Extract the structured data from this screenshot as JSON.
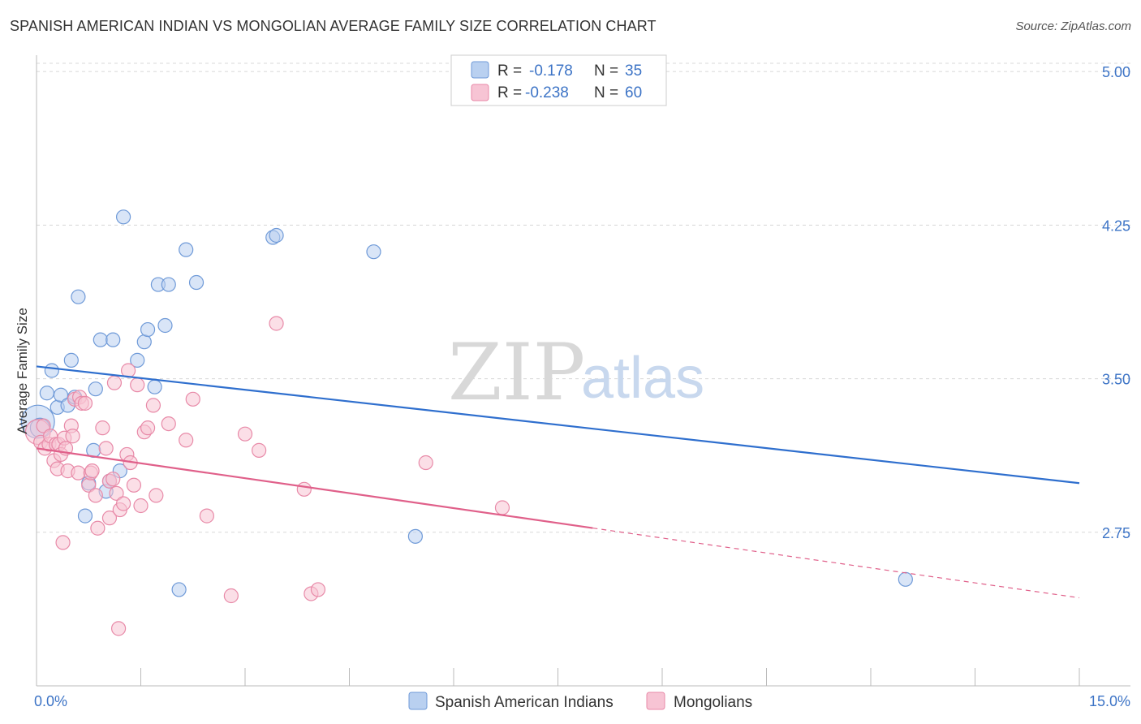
{
  "header": {
    "title": "SPANISH AMERICAN INDIAN VS MONGOLIAN AVERAGE FAMILY SIZE CORRELATION CHART",
    "source": "Source: ZipAtlas.com"
  },
  "watermark": {
    "zip": "ZIP",
    "atlas": "atlas"
  },
  "colors": {
    "blue": "#3d74c6",
    "blue_fill": "#b9d0f0",
    "blue_line": "#2f6fce",
    "pink_fill": "#f7c4d4",
    "pink_stroke": "#e88aa8",
    "pink_line": "#e0608a",
    "grid": "#d8d8d8"
  },
  "legend": {
    "rows": [
      {
        "r_label": "R =",
        "r_value": "-0.178",
        "n_label": "N =",
        "n_value": "35"
      },
      {
        "r_label": "R =",
        "r_value": "-0.238",
        "n_label": "N =",
        "n_value": "60"
      }
    ]
  },
  "chart_data": {
    "type": "scatter",
    "title": "SPANISH AMERICAN INDIAN VS MONGOLIAN AVERAGE FAMILY SIZE CORRELATION CHART",
    "xlabel": "",
    "ylabel": "Average Family Size",
    "xlim": [
      0,
      15
    ],
    "ylim": [
      2.0,
      5.08
    ],
    "x_tick_labels": [
      "0.0%",
      "15.0%"
    ],
    "y_ticks": [
      {
        "value": 5.0,
        "label": "5.00"
      },
      {
        "value": 4.25,
        "label": "4.25"
      },
      {
        "value": 3.5,
        "label": "3.50"
      },
      {
        "value": 2.75,
        "label": "2.75"
      }
    ],
    "legend_position": "top-center",
    "series": [
      {
        "name": "Spanish American Indians",
        "r": -0.178,
        "n": 35,
        "trend": {
          "x0": 0.0,
          "y0": 3.56,
          "x1": 15.0,
          "y1": 2.99,
          "dashed_from": null
        },
        "points": [
          [
            0.02,
            3.29,
            24
          ],
          [
            0.05,
            3.26,
            14
          ],
          [
            0.15,
            3.43,
            10
          ],
          [
            0.22,
            3.54,
            10
          ],
          [
            0.3,
            3.36,
            10
          ],
          [
            0.35,
            3.42,
            10
          ],
          [
            0.45,
            3.37,
            10
          ],
          [
            0.5,
            3.59,
            10
          ],
          [
            0.55,
            3.41,
            10
          ],
          [
            0.6,
            3.9,
            10
          ],
          [
            0.7,
            2.83,
            10
          ],
          [
            0.75,
            2.99,
            10
          ],
          [
            0.82,
            3.15,
            10
          ],
          [
            0.85,
            3.45,
            10
          ],
          [
            0.92,
            3.69,
            10
          ],
          [
            1.0,
            2.95,
            10
          ],
          [
            1.05,
            3.0,
            10
          ],
          [
            1.1,
            3.69,
            10
          ],
          [
            1.2,
            3.05,
            10
          ],
          [
            1.25,
            4.29,
            10
          ],
          [
            1.45,
            3.59,
            10
          ],
          [
            1.55,
            3.68,
            10
          ],
          [
            1.6,
            3.74,
            10
          ],
          [
            1.7,
            3.46,
            10
          ],
          [
            1.75,
            3.96,
            10
          ],
          [
            1.85,
            3.76,
            10
          ],
          [
            1.9,
            3.96,
            10
          ],
          [
            2.05,
            2.47,
            10
          ],
          [
            2.15,
            4.13,
            10
          ],
          [
            2.3,
            3.97,
            10
          ],
          [
            3.4,
            4.19,
            10
          ],
          [
            3.45,
            4.2,
            10
          ],
          [
            4.85,
            4.12,
            10
          ],
          [
            5.45,
            2.73,
            10
          ],
          [
            12.5,
            2.52,
            10
          ]
        ]
      },
      {
        "name": "Mongolians",
        "r": -0.238,
        "n": 60,
        "trend": {
          "x0": 0.0,
          "y0": 3.16,
          "x1": 15.0,
          "y1": 2.43,
          "dashed_from": 8.0
        },
        "points": [
          [
            0.02,
            3.24,
            18
          ],
          [
            0.06,
            3.19,
            10
          ],
          [
            0.1,
            3.27,
            10
          ],
          [
            0.12,
            3.16,
            10
          ],
          [
            0.18,
            3.18,
            10
          ],
          [
            0.2,
            3.22,
            10
          ],
          [
            0.25,
            3.1,
            10
          ],
          [
            0.28,
            3.18,
            10
          ],
          [
            0.3,
            3.06,
            10
          ],
          [
            0.32,
            3.18,
            10
          ],
          [
            0.35,
            3.13,
            10
          ],
          [
            0.38,
            2.7,
            10
          ],
          [
            0.4,
            3.21,
            10
          ],
          [
            0.42,
            3.16,
            10
          ],
          [
            0.45,
            3.05,
            10
          ],
          [
            0.5,
            3.27,
            10
          ],
          [
            0.52,
            3.22,
            10
          ],
          [
            0.55,
            3.4,
            10
          ],
          [
            0.6,
            3.04,
            10
          ],
          [
            0.62,
            3.41,
            10
          ],
          [
            0.65,
            3.38,
            10
          ],
          [
            0.7,
            3.38,
            10
          ],
          [
            0.75,
            2.98,
            10
          ],
          [
            0.78,
            3.04,
            10
          ],
          [
            0.8,
            3.05,
            10
          ],
          [
            0.85,
            2.93,
            10
          ],
          [
            0.88,
            2.77,
            10
          ],
          [
            0.95,
            3.26,
            10
          ],
          [
            1.0,
            3.16,
            10
          ],
          [
            1.05,
            3.0,
            10
          ],
          [
            1.05,
            2.82,
            10
          ],
          [
            1.1,
            3.01,
            10
          ],
          [
            1.12,
            3.48,
            10
          ],
          [
            1.15,
            2.94,
            10
          ],
          [
            1.18,
            2.28,
            10
          ],
          [
            1.2,
            2.86,
            10
          ],
          [
            1.25,
            2.89,
            10
          ],
          [
            1.3,
            3.13,
            10
          ],
          [
            1.32,
            3.54,
            10
          ],
          [
            1.35,
            3.09,
            10
          ],
          [
            1.4,
            2.98,
            10
          ],
          [
            1.45,
            3.47,
            10
          ],
          [
            1.5,
            2.88,
            10
          ],
          [
            1.55,
            3.24,
            10
          ],
          [
            1.6,
            3.26,
            10
          ],
          [
            1.68,
            3.37,
            10
          ],
          [
            1.72,
            2.93,
            10
          ],
          [
            1.9,
            3.28,
            10
          ],
          [
            2.15,
            3.2,
            10
          ],
          [
            2.25,
            3.4,
            10
          ],
          [
            2.45,
            2.83,
            10
          ],
          [
            2.8,
            2.44,
            10
          ],
          [
            3.0,
            3.23,
            10
          ],
          [
            3.2,
            3.15,
            10
          ],
          [
            3.45,
            3.77,
            10
          ],
          [
            3.85,
            2.96,
            10
          ],
          [
            3.95,
            2.45,
            10
          ],
          [
            4.05,
            2.47,
            10
          ],
          [
            5.6,
            3.09,
            10
          ],
          [
            6.7,
            2.87,
            10
          ]
        ]
      }
    ]
  },
  "bottom_legend": {
    "items": [
      {
        "label": "Spanish American Indians"
      },
      {
        "label": "Mongolians"
      }
    ]
  }
}
